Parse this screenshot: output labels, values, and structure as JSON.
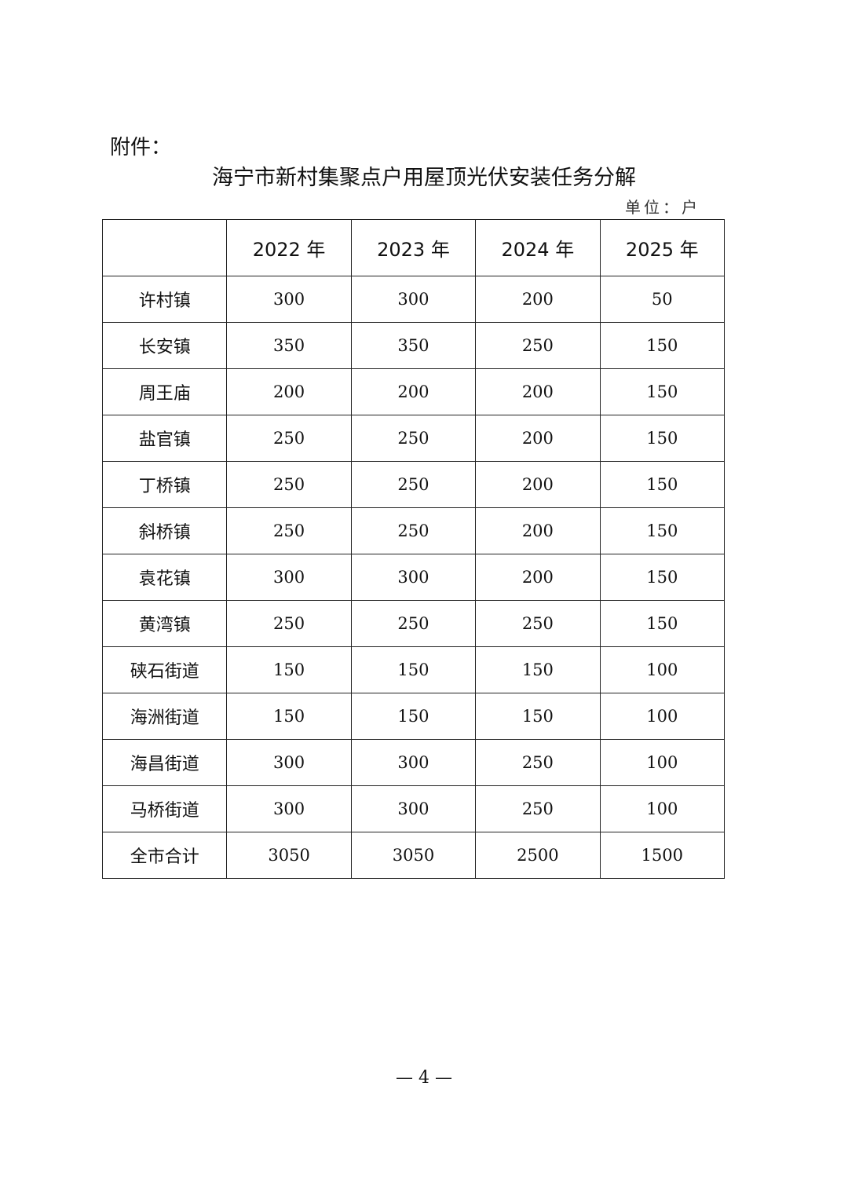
{
  "attachment_label": "附件：",
  "title": "海宁市新村集聚点户用屋顶光伏安装任务分解",
  "unit": "单位：户",
  "table": {
    "headers": [
      "",
      "2022 年",
      "2023 年",
      "2024 年",
      "2025 年"
    ],
    "rows": [
      [
        "许村镇",
        "300",
        "300",
        "200",
        "50"
      ],
      [
        "长安镇",
        "350",
        "350",
        "250",
        "150"
      ],
      [
        "周王庙",
        "200",
        "200",
        "200",
        "150"
      ],
      [
        "盐官镇",
        "250",
        "250",
        "200",
        "150"
      ],
      [
        "丁桥镇",
        "250",
        "250",
        "200",
        "150"
      ],
      [
        "斜桥镇",
        "250",
        "250",
        "200",
        "150"
      ],
      [
        "袁花镇",
        "300",
        "300",
        "200",
        "150"
      ],
      [
        "黄湾镇",
        "250",
        "250",
        "250",
        "150"
      ],
      [
        "硖石街道",
        "150",
        "150",
        "150",
        "100"
      ],
      [
        "海洲街道",
        "150",
        "150",
        "150",
        "100"
      ],
      [
        "海昌街道",
        "300",
        "300",
        "250",
        "100"
      ],
      [
        "马桥街道",
        "300",
        "300",
        "250",
        "100"
      ],
      [
        "全市合计",
        "3050",
        "3050",
        "2500",
        "1500"
      ]
    ]
  },
  "page_number": "— 4 —"
}
